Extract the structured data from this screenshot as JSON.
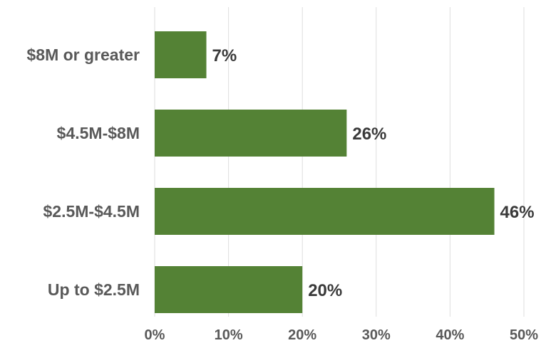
{
  "chart_data": {
    "type": "bar",
    "orientation": "horizontal",
    "title": "",
    "xlabel": "",
    "ylabel": "",
    "categories": [
      "$8M or greater",
      "$4.5M-$8M",
      "$2.5M-$4.5M",
      "Up to $2.5M"
    ],
    "values": [
      7,
      26,
      46,
      20
    ],
    "value_labels": [
      "7%",
      "26%",
      "46%",
      "20%"
    ],
    "xlim": [
      0,
      50
    ],
    "ticks": [
      0,
      10,
      20,
      30,
      40,
      50
    ],
    "tick_labels": [
      "0%",
      "10%",
      "20%",
      "30%",
      "40%",
      "50%"
    ],
    "grid": true,
    "legend": "none",
    "colors": {
      "bar": "#548235",
      "text": "#595959",
      "value_text": "#3a3a3a",
      "grid": "#dedede"
    }
  }
}
